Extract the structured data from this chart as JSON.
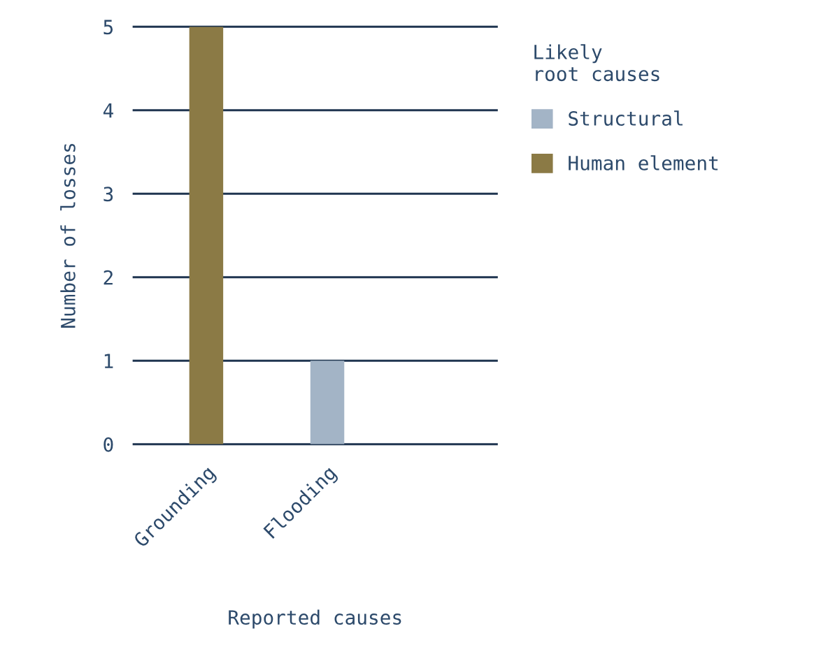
{
  "chart_data": {
    "type": "bar",
    "xlabel": "Reported causes",
    "ylabel": "Number of losses",
    "legend_title": "Likely\nroot causes",
    "categories": [
      "Grounding",
      "Flooding"
    ],
    "series": [
      {
        "name": "Structural",
        "color": "#a3b4c6",
        "values": [
          null,
          1
        ]
      },
      {
        "name": "Human element",
        "color": "#8b7a45",
        "values": [
          5,
          null
        ]
      }
    ],
    "ylim": [
      0,
      5
    ],
    "yticks": [
      0,
      1,
      2,
      3,
      4,
      5
    ],
    "grid": "y",
    "legend": "right"
  }
}
